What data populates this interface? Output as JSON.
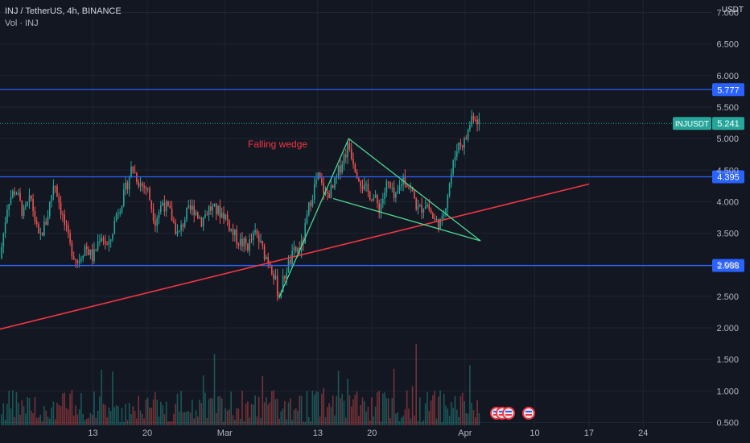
{
  "header": {
    "symbol": "INJ / TetherUS, 4h, BINANCE",
    "volume": "Vol · INJ"
  },
  "currency": "USDT",
  "chart_data": {
    "type": "candlestick",
    "symbol_label": "INJUSDT",
    "last_price": "5.241",
    "ylim": [
      0.2,
      7.3
    ],
    "y_ticks": [
      "0.500",
      "1.000",
      "1.500",
      "2.000",
      "2.500",
      "3.000",
      "3.500",
      "4.000",
      "4.500",
      "5.000",
      "5.500",
      "6.000",
      "6.500",
      "7.000"
    ],
    "x_ticks": [
      "13",
      "20",
      "Mar",
      "13",
      "20",
      "Apr",
      "10",
      "17",
      "24"
    ],
    "horizontal_levels": [
      {
        "value": 5.777,
        "label": "5.777",
        "color": "#2962ff"
      },
      {
        "value": 4.395,
        "label": "4.395",
        "color": "#2962ff"
      },
      {
        "value": 2.988,
        "label": "2.988",
        "color": "#2962ff"
      }
    ],
    "annotation": {
      "text": "Falling wedge",
      "color": "#f23645"
    },
    "trendline": {
      "from": {
        "x": "Feb 1",
        "y": 1.98
      },
      "to": {
        "x": "Apr 17",
        "y": 4.28
      },
      "color": "#f23645"
    },
    "wedge": {
      "color": "#4cd98f",
      "points": [
        {
          "x": "Mar 8",
          "y": 2.48
        },
        {
          "x": "Mar 17",
          "y": 5.0
        },
        {
          "x": "Apr 3",
          "y": 3.38
        },
        {
          "x": "Mar 15",
          "y": 4.05
        }
      ]
    },
    "price_path": [
      [
        "Feb 1",
        3.1
      ],
      [
        "Feb 2",
        4.0
      ],
      [
        "Feb 3",
        4.2
      ],
      [
        "Feb 4",
        3.8
      ],
      [
        "Feb 5",
        4.05
      ],
      [
        "Feb 6",
        3.4
      ],
      [
        "Feb 7",
        3.7
      ],
      [
        "Feb 8",
        4.35
      ],
      [
        "Feb 9",
        3.8
      ],
      [
        "Feb 10",
        3.3
      ],
      [
        "Feb 11",
        3.05
      ],
      [
        "Feb 12",
        3.3
      ],
      [
        "Feb 13",
        3.1
      ],
      [
        "Feb 14",
        3.5
      ],
      [
        "Feb 15",
        3.25
      ],
      [
        "Feb 16",
        3.8
      ],
      [
        "Feb 17",
        4.1
      ],
      [
        "Feb 18",
        4.55
      ],
      [
        "Feb 19",
        4.3
      ],
      [
        "Feb 20",
        4.2
      ],
      [
        "Feb 21",
        3.7
      ],
      [
        "Feb 22",
        4.0
      ],
      [
        "Feb 23",
        3.8
      ],
      [
        "Feb 24",
        3.45
      ],
      [
        "Feb 25",
        3.8
      ],
      [
        "Feb 26",
        3.9
      ],
      [
        "Feb 27",
        3.7
      ],
      [
        "Feb 28",
        3.9
      ],
      [
        "Mar 1",
        3.8
      ],
      [
        "Mar 2",
        3.5
      ],
      [
        "Mar 3",
        3.35
      ],
      [
        "Mar 4",
        3.3
      ],
      [
        "Mar 5",
        3.5
      ],
      [
        "Mar 6",
        3.2
      ],
      [
        "Mar 7",
        3.0
      ],
      [
        "Mar 8",
        2.5
      ],
      [
        "Mar 9",
        2.95
      ],
      [
        "Mar 10",
        3.2
      ],
      [
        "Mar 11",
        3.3
      ],
      [
        "Mar 12",
        4.0
      ],
      [
        "Mar 13",
        4.4
      ],
      [
        "Mar 14",
        4.1
      ],
      [
        "Mar 15",
        4.2
      ],
      [
        "Mar 16",
        4.6
      ],
      [
        "Mar 17",
        4.9
      ],
      [
        "Mar 18",
        4.5
      ],
      [
        "Mar 19",
        4.2
      ],
      [
        "Mar 20",
        4.1
      ],
      [
        "Mar 21",
        3.9
      ],
      [
        "Mar 22",
        4.3
      ],
      [
        "Mar 23",
        4.0
      ],
      [
        "Mar 24",
        4.4
      ],
      [
        "Mar 25",
        4.2
      ],
      [
        "Mar 26",
        3.85
      ],
      [
        "Mar 27",
        4.0
      ],
      [
        "Mar 28",
        3.7
      ],
      [
        "Mar 29",
        3.65
      ],
      [
        "Mar 30",
        4.3
      ],
      [
        "Mar 31",
        4.9
      ],
      [
        "Apr 1",
        4.95
      ],
      [
        "Apr 2",
        5.4
      ],
      [
        "Apr 3",
        5.25
      ]
    ]
  }
}
